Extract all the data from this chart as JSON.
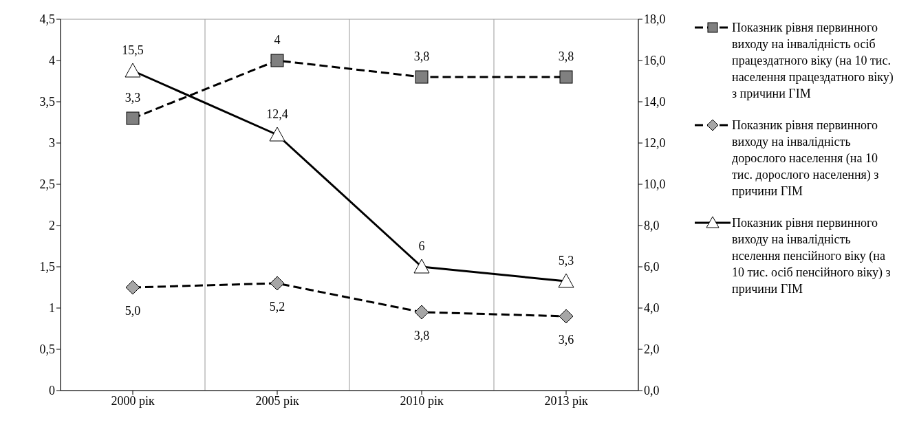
{
  "chart_data": {
    "type": "line",
    "categories": [
      "2000 рік",
      "2005 рік",
      "2010 рік",
      "2013 рік"
    ],
    "series": [
      {
        "name": "Показник рівня первинного виходу на інвалідність осіб працездатного віку (на 10 тис. населення працездатного віку) з причини ГІМ",
        "color": "#808080",
        "marker": "square",
        "line_style": "dashed",
        "values": [
          3.3,
          4,
          3.8,
          3.8
        ],
        "value_labels": [
          "3,3",
          "4",
          "3,8",
          "3,8"
        ]
      },
      {
        "name": "Показник рівня первинного виходу на інвалідність дорослого населення (на 10 тис. дорослого населення) з причини ГІМ",
        "color": "#a6a6a6",
        "marker": "diamond",
        "line_style": "dashed",
        "axis": "y2",
        "values": [
          5.0,
          5.2,
          3.8,
          3.6
        ],
        "value_labels": [
          "5,0",
          "5,2",
          "3,8",
          "3,6"
        ]
      },
      {
        "name": "Показник рівня первинного виходу на інвалідність нселення пенсійного віку (на 10 тис. осіб пенсійного віку) з причини ГІМ",
        "color": "#ffffff",
        "marker": "triangle",
        "line_style": "solid",
        "axis": "y2",
        "values": [
          15.5,
          12.4,
          6,
          5.3
        ],
        "value_labels": [
          "15,5",
          "12,4",
          "6",
          "5,3"
        ]
      }
    ],
    "ylim": [
      0,
      4.5
    ],
    "yticks": [
      0,
      {
        "value": 0.5,
        "label": "0,5"
      },
      1,
      {
        "value": 1.5,
        "label": "1,5"
      },
      2,
      {
        "value": 2.5,
        "label": "2,5"
      },
      3,
      {
        "value": 3.5,
        "label": "3,5"
      },
      4,
      {
        "value": 4.5,
        "label": "4,5"
      }
    ],
    "y2lim": [
      0,
      18
    ],
    "y2ticks": [
      {
        "value": 0,
        "label": "0,0"
      },
      {
        "value": 2,
        "label": "2,0"
      },
      {
        "value": 4,
        "label": "4,0"
      },
      {
        "value": 6,
        "label": "6,0"
      },
      {
        "value": 8,
        "label": "8,0"
      },
      {
        "value": 10,
        "label": "10,0"
      },
      {
        "value": 12,
        "label": "12,0"
      },
      {
        "value": 14,
        "label": "14,0"
      },
      {
        "value": 16,
        "label": "16,0"
      },
      {
        "value": 18,
        "label": "18,0"
      }
    ],
    "grid": true,
    "legend": "right"
  }
}
